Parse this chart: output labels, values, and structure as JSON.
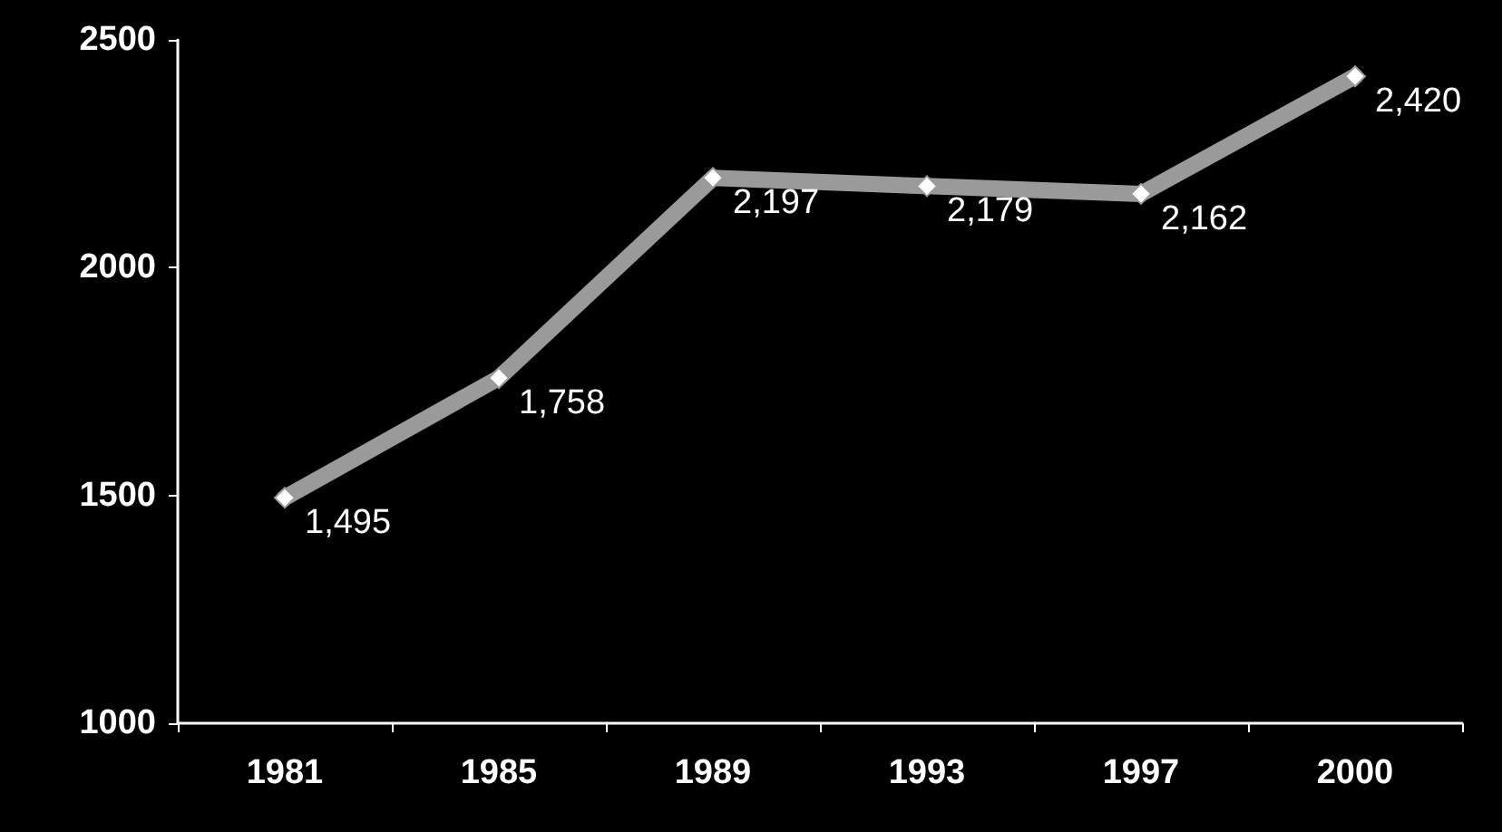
{
  "chart_data": {
    "type": "line",
    "categories": [
      "1981",
      "1985",
      "1989",
      "1993",
      "1997",
      "2000"
    ],
    "series": [
      {
        "color": "#9a9a9a",
        "values": [
          1495,
          1758,
          2197,
          2179,
          2162,
          2420
        ],
        "value_labels": [
          "1,495",
          "1,758",
          "2,197",
          "2,179",
          "2,162",
          "2,420"
        ]
      }
    ],
    "ylim": [
      1000,
      2500
    ],
    "yticks": [
      1000,
      1500,
      2000,
      2500
    ],
    "grid": false,
    "marker": "diamond",
    "line_style": "solid"
  }
}
